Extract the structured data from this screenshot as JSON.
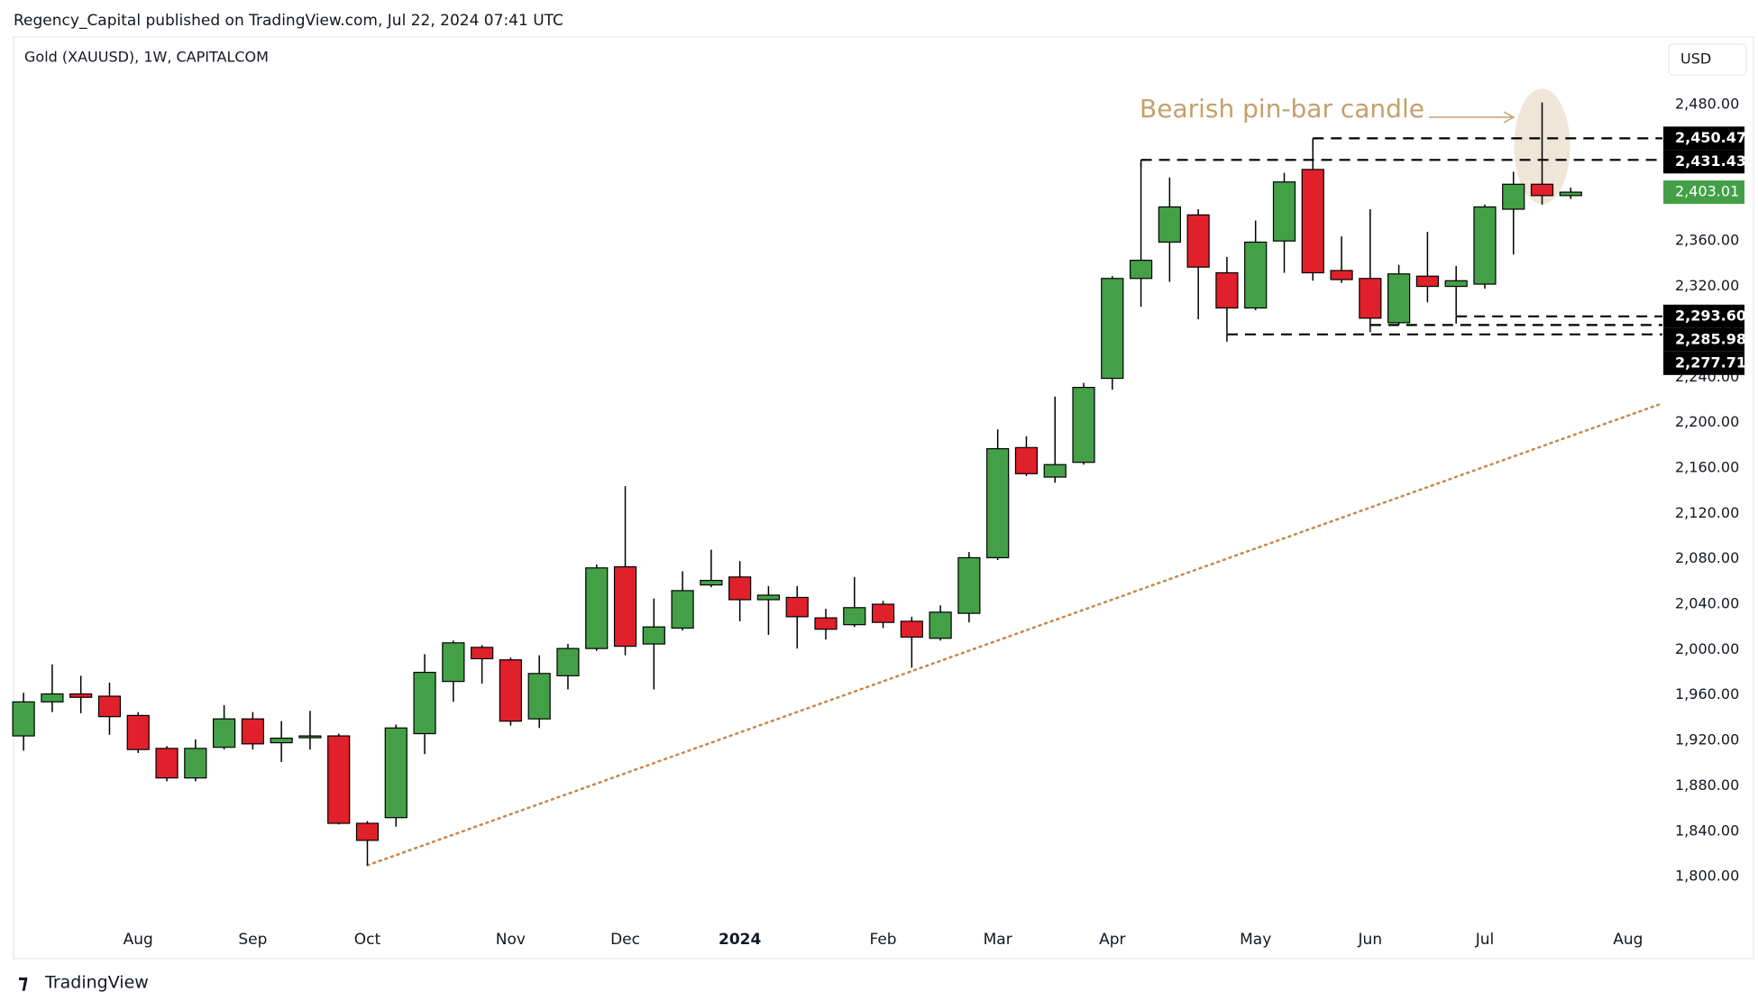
{
  "header": {
    "publisher": "Regency_Capital published on TradingView.com, Jul 22, 2024 07:41 UTC",
    "brand": "TradingView"
  },
  "chart_data": {
    "type": "candlestick",
    "title": "Gold (XAUUSD), 1W, CAPITALCOM",
    "currency": "USD",
    "up_color": "#43a047",
    "down_color": "#e0202a",
    "open": [
      1924,
      1954,
      1961,
      1959,
      1942,
      1913,
      1887,
      1914,
      1939,
      1918,
      1923,
      1924,
      1847,
      1852,
      1926,
      1972,
      2002,
      1991,
      1939,
      1977,
      2001,
      2073,
      2005,
      2019,
      2057,
      2064,
      2044,
      2046,
      2028,
      2022,
      2040,
      2025,
      2010,
      2032,
      2081,
      2178,
      2152,
      2165,
      2239,
      2327,
      2359,
      2383,
      2332,
      2301,
      2360,
      2423,
      2334,
      2327,
      2288,
      2329,
      2320,
      2322,
      2388,
      2410,
      2400
    ],
    "high": [
      1962,
      1987,
      1977,
      1971,
      1945,
      1915,
      1921,
      1951,
      1945,
      1937,
      1946,
      1926,
      1849,
      1934,
      1996,
      2008,
      2004,
      1993,
      1995,
      2005,
      2075,
      2144,
      2045,
      2069,
      2088,
      2078,
      2056,
      2056,
      2036,
      2064,
      2043,
      2029,
      2039,
      2086,
      2194,
      2188,
      2223,
      2235,
      2329,
      2429,
      2416,
      2388,
      2346,
      2378,
      2420,
      2449,
      2364,
      2388,
      2339,
      2368,
      2338,
      2392,
      2421,
      2482,
      2407
    ],
    "low": [
      1911,
      1945,
      1944,
      1925,
      1909,
      1884,
      1884,
      1912,
      1912,
      1901,
      1912,
      1846,
      1810,
      1844,
      1908,
      1954,
      1970,
      1933,
      1931,
      1965,
      1999,
      1995,
      1965,
      2017,
      2055,
      2025,
      2013,
      2001,
      2009,
      2020,
      2019,
      1984,
      2008,
      2024,
      2079,
      2153,
      2147,
      2163,
      2229,
      2302,
      2324,
      2291,
      2278,
      2299,
      2332,
      2325,
      2323,
      2286,
      2286,
      2306,
      2294,
      2318,
      2348,
      2392,
      2397
    ],
    "close": [
      1954,
      1961,
      1958,
      1941,
      1912,
      1887,
      1913,
      1939,
      1917,
      1922,
      1924,
      1847,
      1832,
      1931,
      1980,
      2006,
      1992,
      1937,
      1979,
      2001,
      2072,
      2003,
      2020,
      2052,
      2061,
      2044,
      2048,
      2029,
      2018,
      2037,
      2024,
      2011,
      2033,
      2081,
      2177,
      2155,
      2163,
      2231,
      2327,
      2343,
      2390,
      2337,
      2301,
      2359,
      2412,
      2332,
      2326,
      2292,
      2331,
      2320,
      2325,
      2390,
      2410,
      2400,
      2403.01
    ],
    "last_price_label": "2,403.01",
    "xlim": [
      -0.35,
      57.2
    ],
    "xticks": [
      {
        "value": 4,
        "label": "Aug"
      },
      {
        "value": 8,
        "label": "Sep"
      },
      {
        "value": 12,
        "label": "Oct"
      },
      {
        "value": 17,
        "label": "Nov"
      },
      {
        "value": 21,
        "label": "Dec"
      },
      {
        "value": 25,
        "label": "2024"
      },
      {
        "value": 30,
        "label": "Feb"
      },
      {
        "value": 34,
        "label": "Mar"
      },
      {
        "value": 38,
        "label": "Apr"
      },
      {
        "value": 43,
        "label": "May"
      },
      {
        "value": 47,
        "label": "Jun"
      },
      {
        "value": 51,
        "label": "Jul"
      },
      {
        "value": 56,
        "label": "Aug"
      }
    ],
    "ylim": [
      1758,
      2500
    ],
    "yticks": [
      {
        "value": 1800,
        "label": "1,800.00"
      },
      {
        "value": 1840,
        "label": "1,840.00"
      },
      {
        "value": 1880,
        "label": "1,880.00"
      },
      {
        "value": 1920,
        "label": "1,920.00"
      },
      {
        "value": 1960,
        "label": "1,960.00"
      },
      {
        "value": 2000,
        "label": "2,000.00"
      },
      {
        "value": 2040,
        "label": "2,040.00"
      },
      {
        "value": 2080,
        "label": "2,080.00"
      },
      {
        "value": 2120,
        "label": "2,120.00"
      },
      {
        "value": 2160,
        "label": "2,160.00"
      },
      {
        "value": 2200,
        "label": "2,200.00"
      },
      {
        "value": 2240,
        "label": "2,240.00"
      },
      {
        "value": 2280,
        "label": "2,280.00"
      },
      {
        "value": 2320,
        "label": "2,320.00"
      },
      {
        "value": 2360,
        "label": "2,360.00"
      },
      {
        "value": 2400,
        "label": "2,400.00"
      },
      {
        "value": 2440,
        "label": "2,440.00"
      },
      {
        "value": 2480,
        "label": "2,480.00"
      }
    ],
    "levels": {
      "values": [
        2450.47,
        2431.43,
        2293.6,
        2285.98,
        2277.71
      ],
      "value_labels": [
        "2,450.47",
        "2,431.43",
        "2,293.60",
        "2,285.98",
        "2,277.71"
      ],
      "start": [
        45,
        39,
        50,
        47,
        42
      ]
    },
    "trendline": {
      "x": [
        12,
        57.2
      ],
      "y": [
        1810,
        2217
      ],
      "color": "#c8874a"
    },
    "annotation": {
      "text": "Bearish pin-bar candle",
      "color": "#c4a06a"
    }
  }
}
